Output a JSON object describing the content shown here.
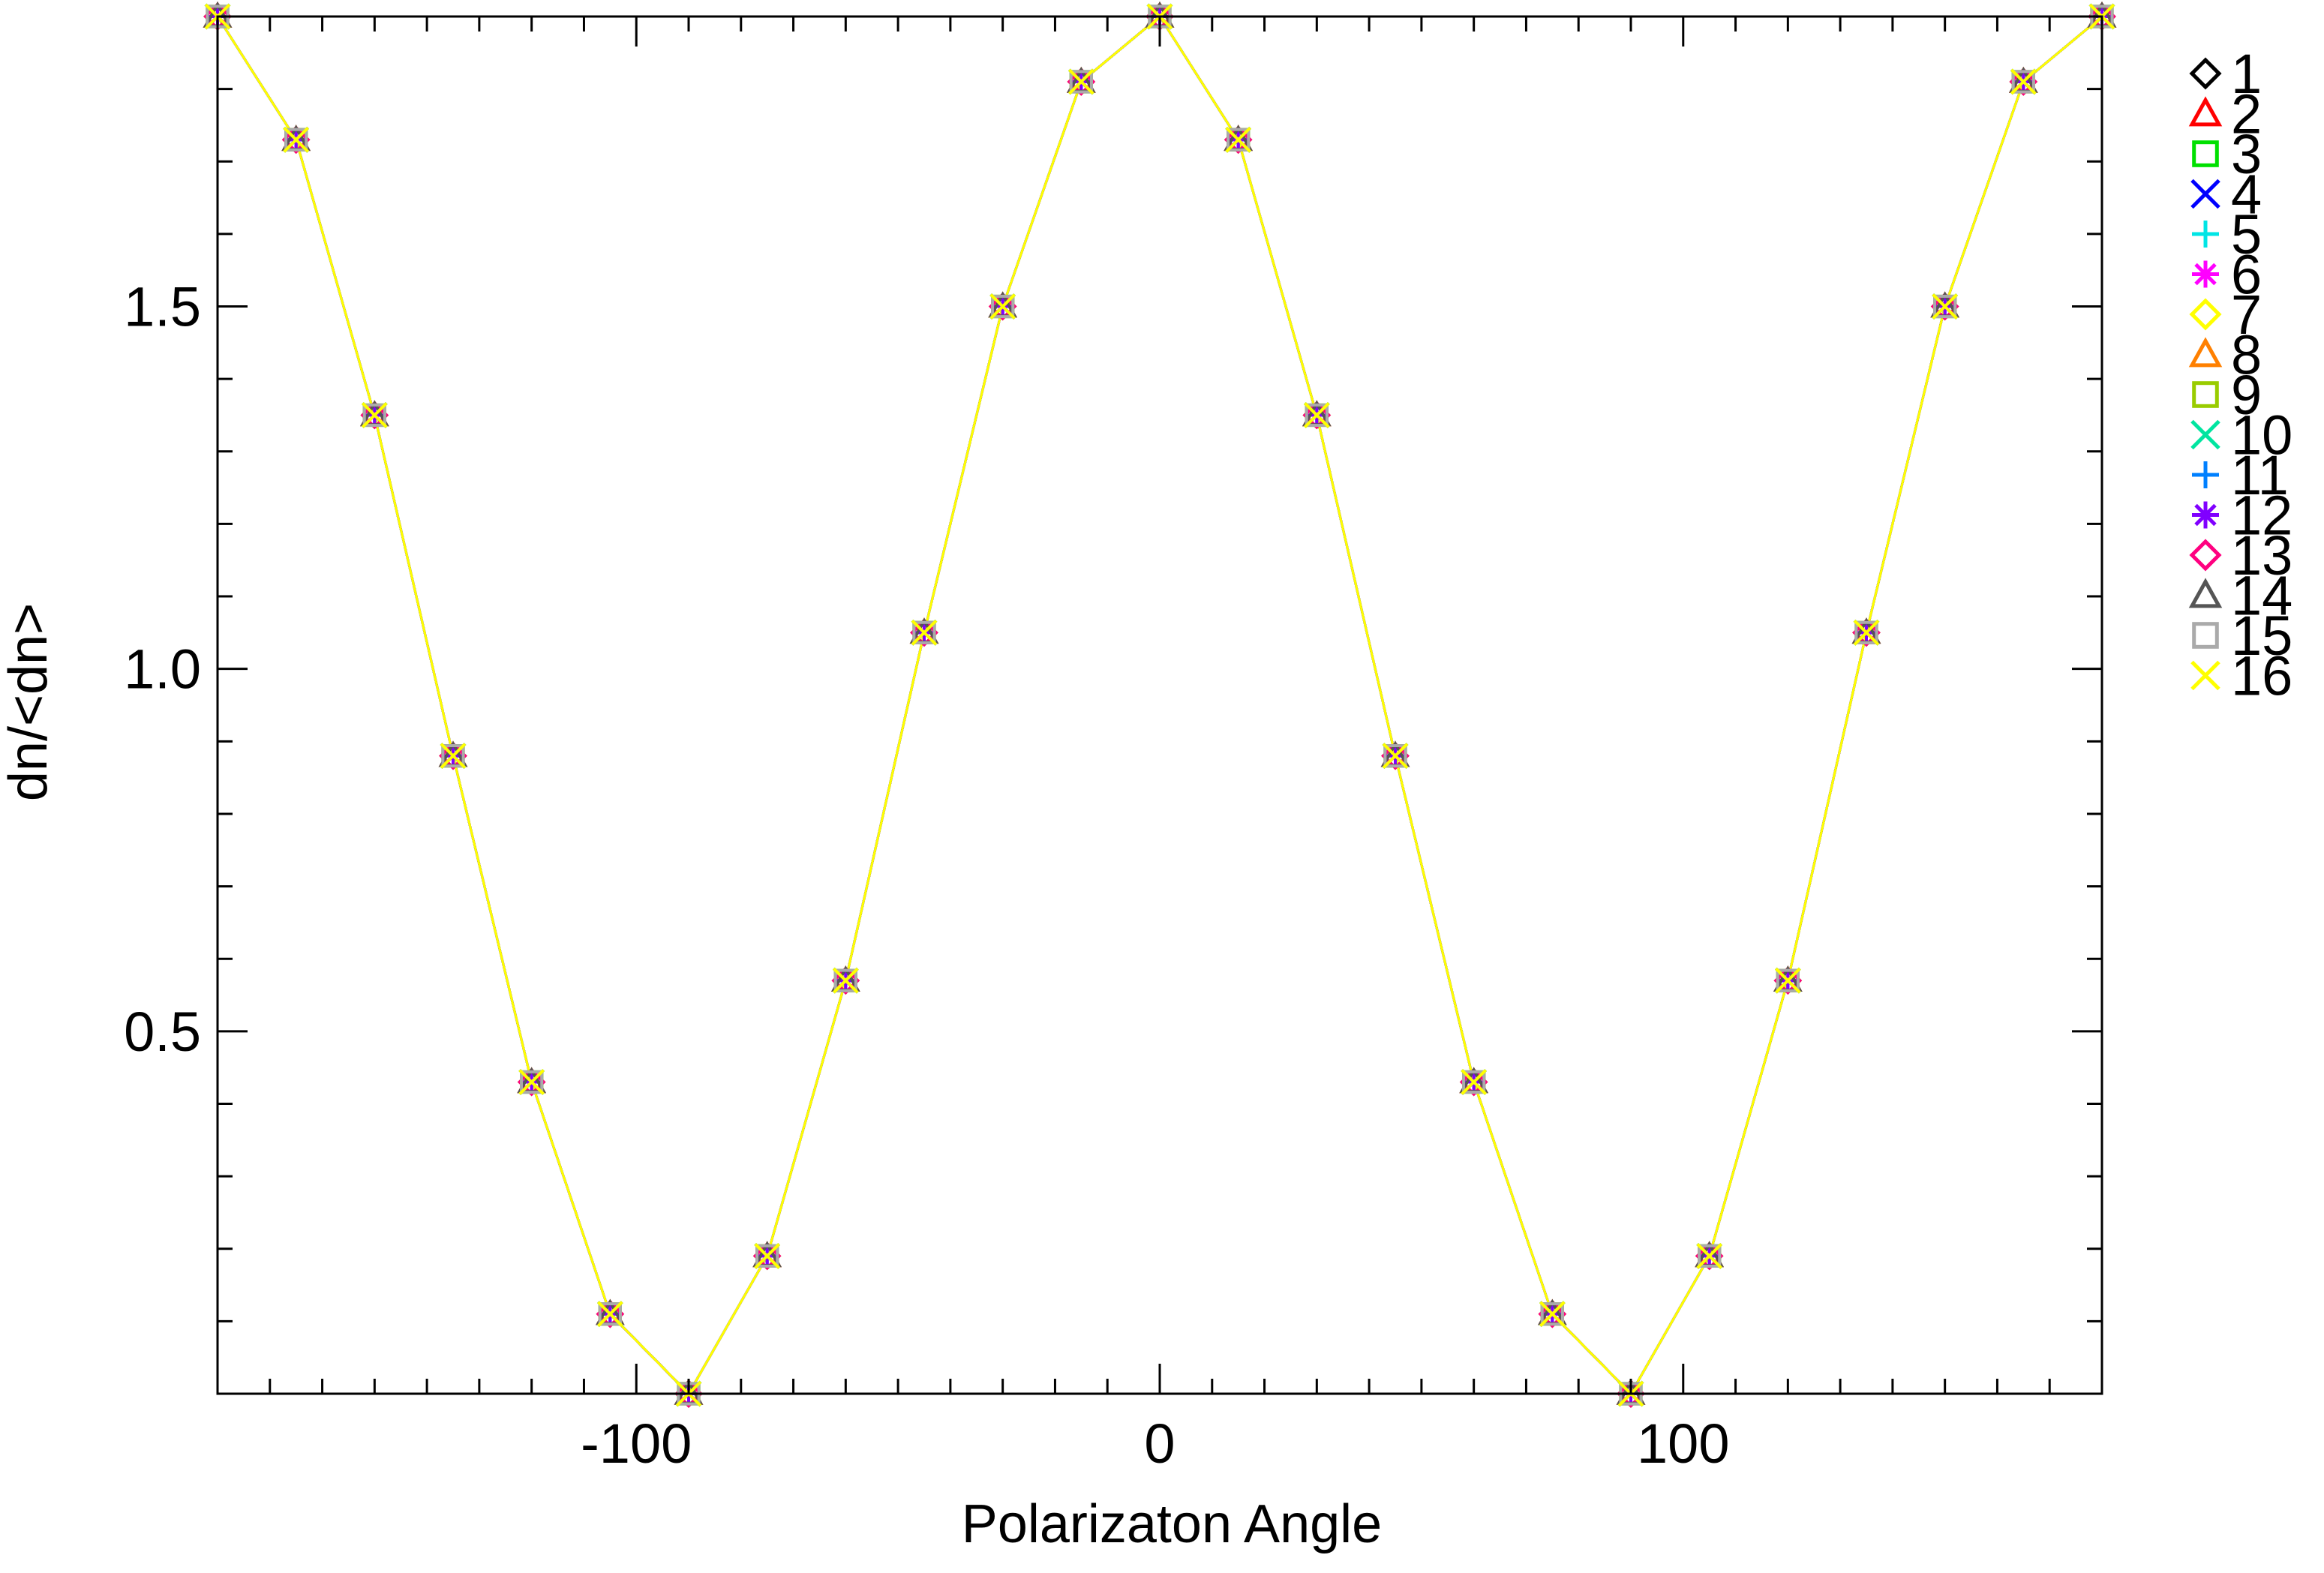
{
  "chart_data": {
    "type": "line",
    "title": "",
    "xlabel": "Polarizaton Angle",
    "ylabel": "dn/<dn>",
    "xlim": [
      -180,
      180
    ],
    "ylim": [
      0.0,
      1.9
    ],
    "xticks": [
      -100,
      0,
      100
    ],
    "xtick_labels": [
      "-100",
      "0",
      "100"
    ],
    "yticks": [
      0.5,
      1.0,
      1.5
    ],
    "ytick_labels": [
      "0.5",
      "1.0",
      "1.5"
    ],
    "grid": false,
    "legend_position": "right",
    "x": [
      -180,
      -165,
      -150,
      -135,
      -120,
      -105,
      -90,
      -75,
      -60,
      -45,
      -30,
      -15,
      0,
      15,
      30,
      45,
      60,
      75,
      90,
      105,
      120,
      135,
      150,
      165,
      180
    ],
    "series": [
      {
        "name": "1",
        "color": "#000000",
        "marker": "diamond",
        "values": [
          1.9,
          1.73,
          1.35,
          0.88,
          0.43,
          0.11,
          0.0,
          0.19,
          0.57,
          1.05,
          1.5,
          1.81,
          1.9,
          1.73,
          1.35,
          0.88,
          0.43,
          0.11,
          0.0,
          0.19,
          0.57,
          1.05,
          1.5,
          1.81,
          1.9
        ]
      },
      {
        "name": "2",
        "color": "#ff0000",
        "marker": "triangle",
        "values": [
          1.9,
          1.73,
          1.35,
          0.88,
          0.43,
          0.11,
          0.0,
          0.19,
          0.57,
          1.05,
          1.5,
          1.81,
          1.9,
          1.73,
          1.35,
          0.88,
          0.43,
          0.11,
          0.0,
          0.19,
          0.57,
          1.05,
          1.5,
          1.81,
          1.9
        ]
      },
      {
        "name": "3",
        "color": "#00e000",
        "marker": "square",
        "values": [
          1.9,
          1.73,
          1.35,
          0.88,
          0.43,
          0.11,
          0.0,
          0.19,
          0.57,
          1.05,
          1.5,
          1.81,
          1.9,
          1.73,
          1.35,
          0.88,
          0.43,
          0.11,
          0.0,
          0.19,
          0.57,
          1.05,
          1.5,
          1.81,
          1.9
        ]
      },
      {
        "name": "4",
        "color": "#0000ff",
        "marker": "x",
        "values": [
          1.9,
          1.73,
          1.35,
          0.88,
          0.43,
          0.11,
          0.0,
          0.19,
          0.57,
          1.05,
          1.5,
          1.81,
          1.9,
          1.73,
          1.35,
          0.88,
          0.43,
          0.11,
          0.0,
          0.19,
          0.57,
          1.05,
          1.5,
          1.81,
          1.9
        ]
      },
      {
        "name": "5",
        "color": "#00e5e5",
        "marker": "plus",
        "values": [
          1.9,
          1.73,
          1.35,
          0.88,
          0.43,
          0.11,
          0.0,
          0.19,
          0.57,
          1.05,
          1.5,
          1.81,
          1.9,
          1.73,
          1.35,
          0.88,
          0.43,
          0.11,
          0.0,
          0.19,
          0.57,
          1.05,
          1.5,
          1.81,
          1.9
        ]
      },
      {
        "name": "6",
        "color": "#ff00ff",
        "marker": "asterisk",
        "values": [
          1.9,
          1.73,
          1.35,
          0.88,
          0.43,
          0.11,
          0.0,
          0.19,
          0.57,
          1.05,
          1.5,
          1.81,
          1.9,
          1.73,
          1.35,
          0.88,
          0.43,
          0.11,
          0.0,
          0.19,
          0.57,
          1.05,
          1.5,
          1.81,
          1.9
        ]
      },
      {
        "name": "7",
        "color": "#ffff00",
        "marker": "diamond",
        "values": [
          1.9,
          1.73,
          1.35,
          0.88,
          0.43,
          0.11,
          0.0,
          0.19,
          0.57,
          1.05,
          1.5,
          1.81,
          1.9,
          1.73,
          1.35,
          0.88,
          0.43,
          0.11,
          0.0,
          0.19,
          0.57,
          1.05,
          1.5,
          1.81,
          1.9
        ]
      },
      {
        "name": "8",
        "color": "#ff8000",
        "marker": "triangle",
        "values": [
          1.9,
          1.73,
          1.35,
          0.88,
          0.43,
          0.11,
          0.0,
          0.19,
          0.57,
          1.05,
          1.5,
          1.81,
          1.9,
          1.73,
          1.35,
          0.88,
          0.43,
          0.11,
          0.0,
          0.19,
          0.57,
          1.05,
          1.5,
          1.81,
          1.9
        ]
      },
      {
        "name": "9",
        "color": "#99cc00",
        "marker": "square",
        "values": [
          1.9,
          1.73,
          1.35,
          0.88,
          0.43,
          0.11,
          0.0,
          0.19,
          0.57,
          1.05,
          1.5,
          1.81,
          1.9,
          1.73,
          1.35,
          0.88,
          0.43,
          0.11,
          0.0,
          0.19,
          0.57,
          1.05,
          1.5,
          1.81,
          1.9
        ]
      },
      {
        "name": "10",
        "color": "#00e5a0",
        "marker": "x",
        "values": [
          1.9,
          1.73,
          1.35,
          0.88,
          0.43,
          0.11,
          0.0,
          0.19,
          0.57,
          1.05,
          1.5,
          1.81,
          1.9,
          1.73,
          1.35,
          0.88,
          0.43,
          0.11,
          0.0,
          0.19,
          0.57,
          1.05,
          1.5,
          1.81,
          1.9
        ]
      },
      {
        "name": "11",
        "color": "#0080ff",
        "marker": "plus",
        "values": [
          1.9,
          1.73,
          1.35,
          0.88,
          0.43,
          0.11,
          0.0,
          0.19,
          0.57,
          1.05,
          1.5,
          1.81,
          1.9,
          1.73,
          1.35,
          0.88,
          0.43,
          0.11,
          0.0,
          0.19,
          0.57,
          1.05,
          1.5,
          1.81,
          1.9
        ]
      },
      {
        "name": "12",
        "color": "#8000ff",
        "marker": "asterisk",
        "values": [
          1.9,
          1.73,
          1.35,
          0.88,
          0.43,
          0.11,
          0.0,
          0.19,
          0.57,
          1.05,
          1.5,
          1.81,
          1.9,
          1.73,
          1.35,
          0.88,
          0.43,
          0.11,
          0.0,
          0.19,
          0.57,
          1.05,
          1.5,
          1.81,
          1.9
        ]
      },
      {
        "name": "13",
        "color": "#ff0080",
        "marker": "diamond",
        "values": [
          1.9,
          1.73,
          1.35,
          0.88,
          0.43,
          0.11,
          0.0,
          0.19,
          0.57,
          1.05,
          1.5,
          1.81,
          1.9,
          1.73,
          1.35,
          0.88,
          0.43,
          0.11,
          0.0,
          0.19,
          0.57,
          1.05,
          1.5,
          1.81,
          1.9
        ]
      },
      {
        "name": "14",
        "color": "#555555",
        "marker": "triangle",
        "values": [
          1.9,
          1.73,
          1.35,
          0.88,
          0.43,
          0.11,
          0.0,
          0.19,
          0.57,
          1.05,
          1.5,
          1.81,
          1.9,
          1.73,
          1.35,
          0.88,
          0.43,
          0.11,
          0.0,
          0.19,
          0.57,
          1.05,
          1.5,
          1.81,
          1.9
        ]
      },
      {
        "name": "15",
        "color": "#aaaaaa",
        "marker": "square",
        "values": [
          1.9,
          1.73,
          1.35,
          0.88,
          0.43,
          0.11,
          0.0,
          0.19,
          0.57,
          1.05,
          1.5,
          1.81,
          1.9,
          1.73,
          1.35,
          0.88,
          0.43,
          0.11,
          0.0,
          0.19,
          0.57,
          1.05,
          1.5,
          1.81,
          1.9
        ]
      },
      {
        "name": "16",
        "color": "#ffff00",
        "marker": "x",
        "values": [
          1.9,
          1.73,
          1.35,
          0.88,
          0.43,
          0.11,
          0.0,
          0.19,
          0.57,
          1.05,
          1.5,
          1.81,
          1.9,
          1.73,
          1.35,
          0.88,
          0.43,
          0.11,
          0.0,
          0.19,
          0.57,
          1.05,
          1.5,
          1.81,
          1.9
        ]
      }
    ]
  }
}
